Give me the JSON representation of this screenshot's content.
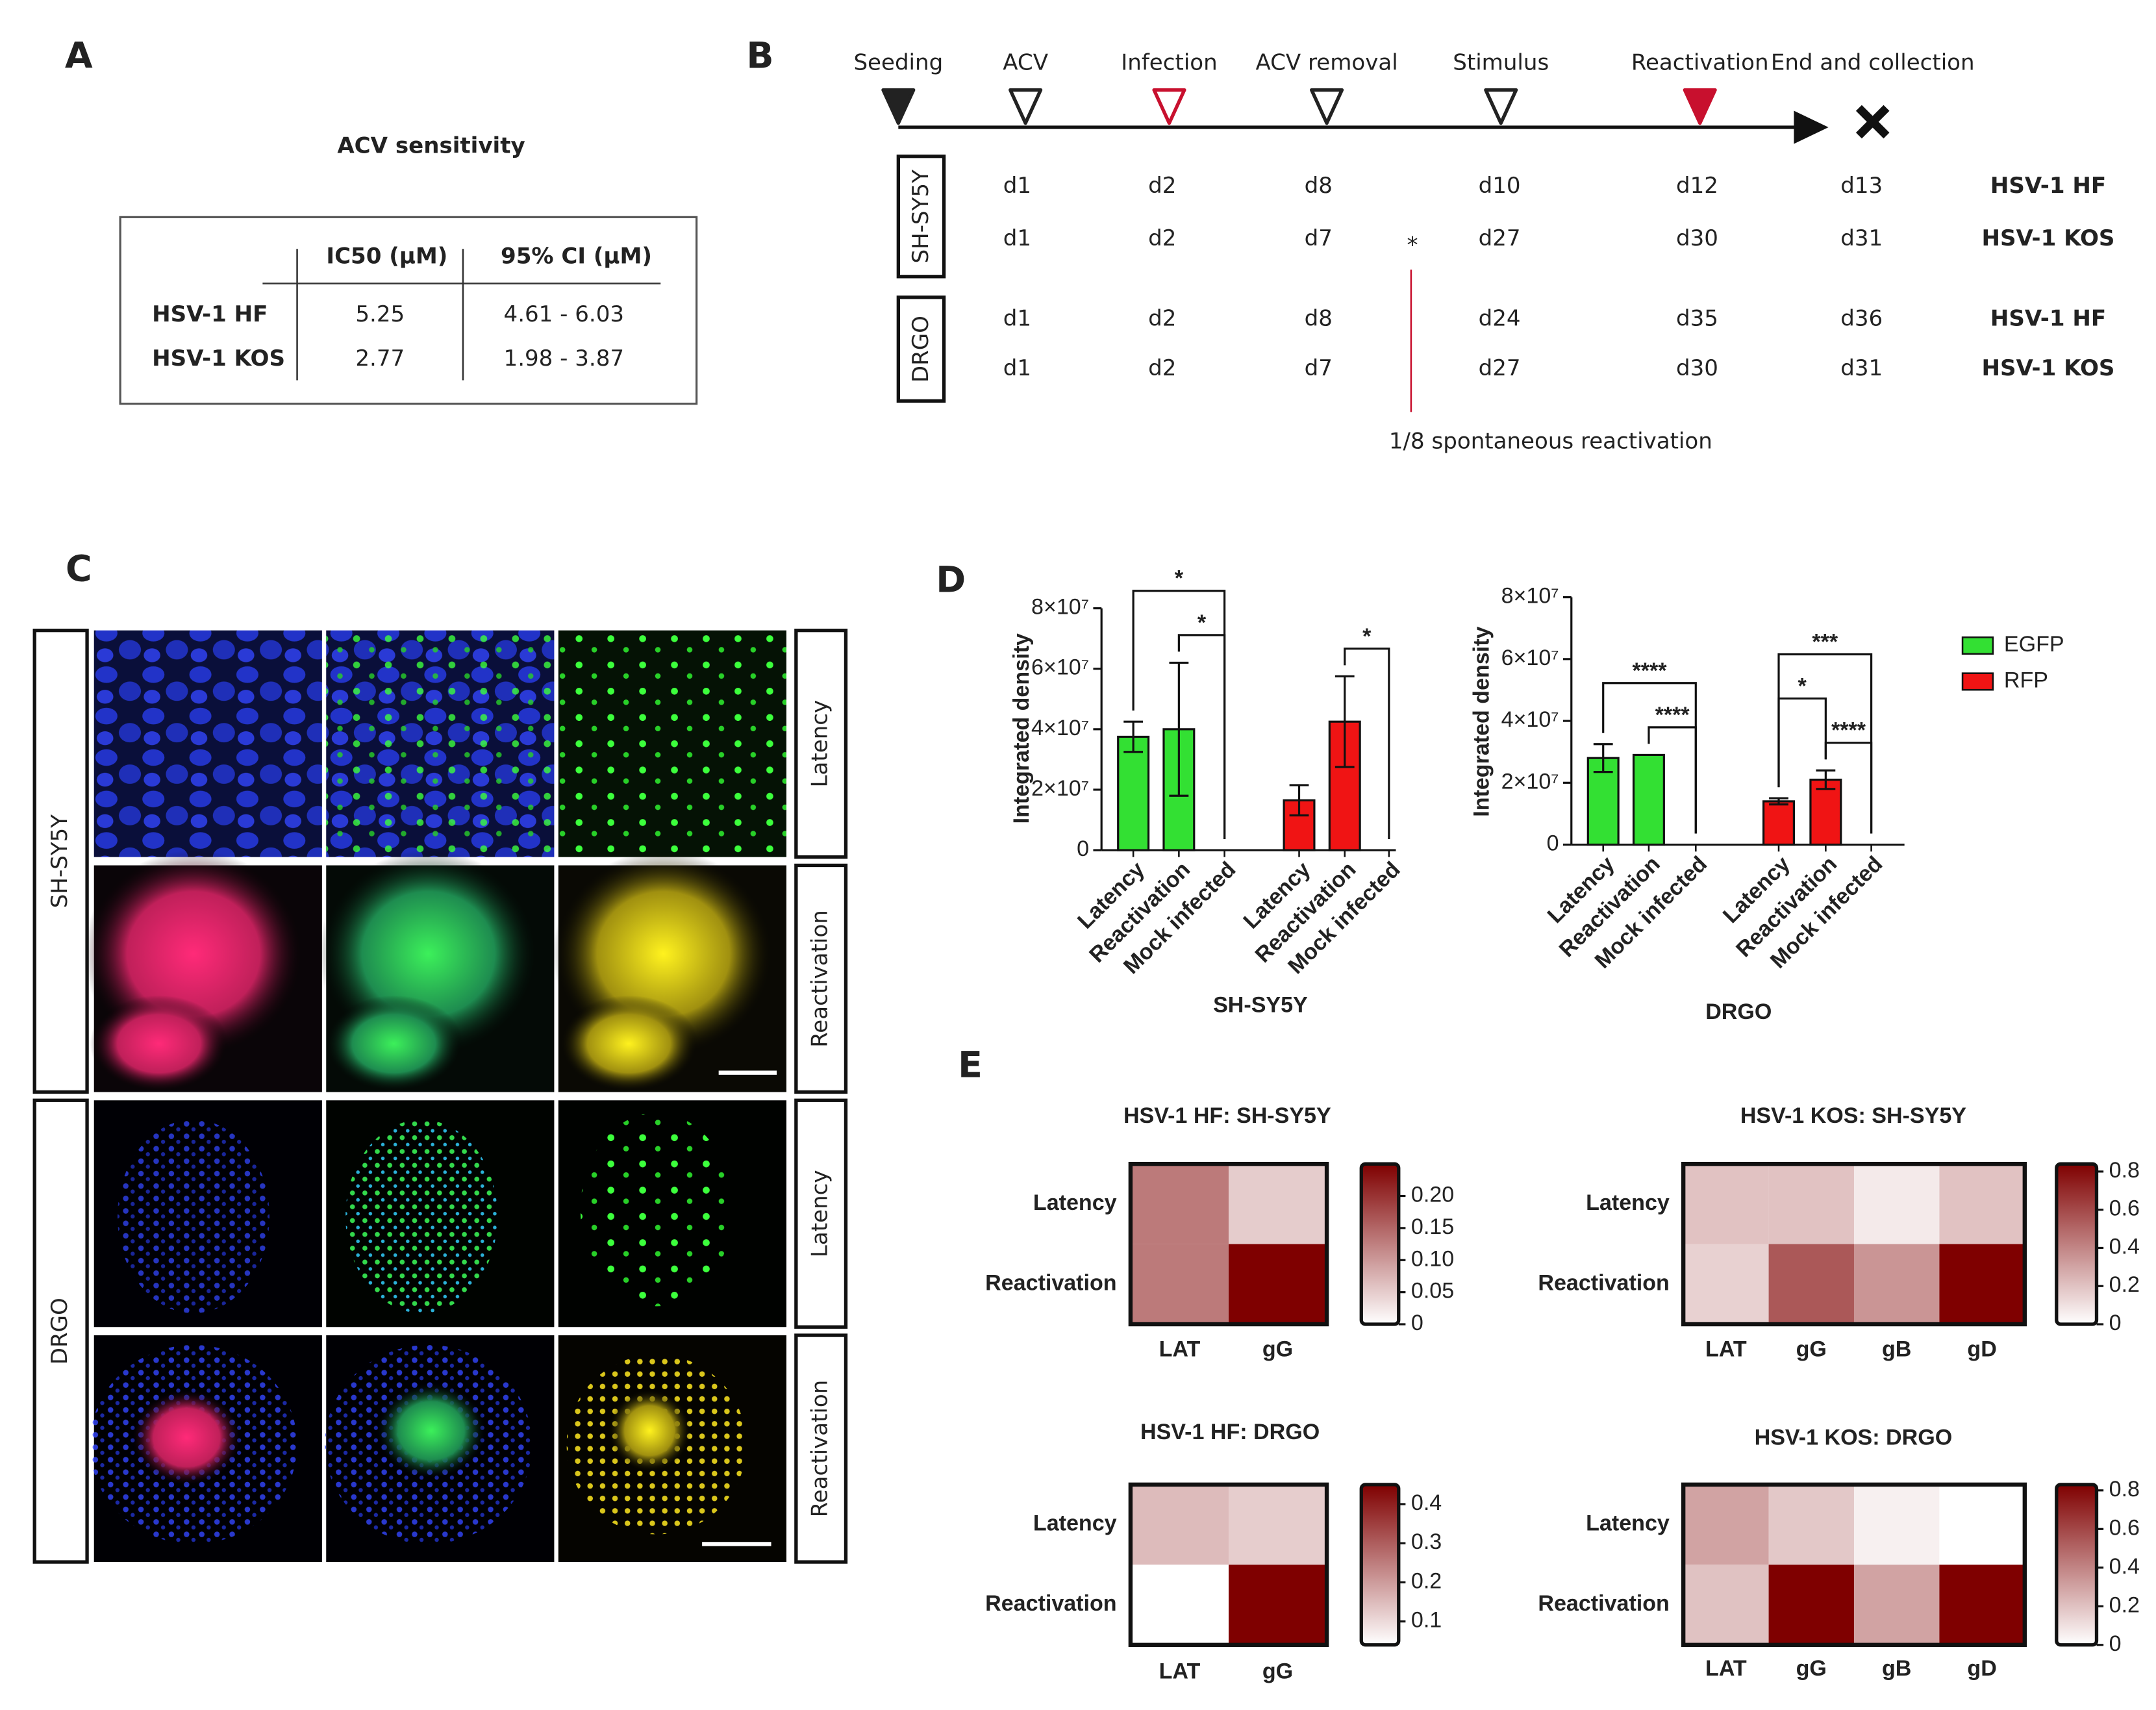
{
  "panel_labels": [
    "A",
    "B",
    "C",
    "D",
    "E"
  ],
  "panel_a": {
    "title": "ACV sensitivity",
    "table": {
      "header": [
        "IC50 (µM)",
        "95% CI (µM)"
      ],
      "rows": [
        {
          "name": "HSV-1 HF",
          "color": "#2e3192",
          "values": [
            5.25,
            "4.61 - 6.03"
          ]
        },
        {
          "name": "HSV-1 KOS",
          "color": "#c8102e",
          "values": [
            2.77,
            "1.98 - 3.87"
          ]
        }
      ]
    }
  },
  "panel_b": {
    "steps": [
      {
        "label": "Seeding",
        "color": "#222222",
        "marker": "filled"
      },
      {
        "label": "ACV",
        "color": "#222222",
        "marker": "open"
      },
      {
        "label": "Infection",
        "color": "#c8102e",
        "marker": "open"
      },
      {
        "label": "ACV removal",
        "color": "#222222",
        "marker": "open"
      },
      {
        "label": "Stimulus",
        "color": "#222222",
        "marker": "open"
      },
      {
        "label": "Reactivation",
        "color": "#c8102e",
        "marker": "filled"
      },
      {
        "label": "End and collection",
        "color": "#111111",
        "marker": "cross"
      }
    ],
    "groups": [
      {
        "cell": "SH-SY5Y",
        "rows": [
          {
            "days": [
              "d1",
              "d2",
              "d8",
              "d10",
              "d12",
              "d13"
            ],
            "strain": "HSV-1 HF",
            "color": "#2e3192"
          },
          {
            "days": [
              "d1",
              "d2",
              "d7",
              "d27",
              "d30",
              "d31"
            ],
            "strain": "HSV-1 KOS",
            "color": "#c8102e"
          }
        ]
      },
      {
        "cell": "DRGO",
        "rows": [
          {
            "days": [
              "d1",
              "d2",
              "d8",
              "d24",
              "d35",
              "d36"
            ],
            "strain": "HSV-1 HF",
            "color": "#2e3192"
          },
          {
            "days": [
              "d1",
              "d2",
              "d7",
              "d27",
              "d30",
              "d31"
            ],
            "strain": "HSV-1 KOS",
            "color": "#c8102e"
          }
        ]
      }
    ],
    "asterisk": "*",
    "note": "1/8 spontaneous reactivation",
    "note_color": "#c8102e"
  },
  "panel_c": {
    "groups": [
      {
        "name": "SH-SY5Y",
        "rows": [
          "Latency",
          "Reactivation"
        ]
      },
      {
        "name": "DRGO",
        "rows": [
          "Latency",
          "Reactivation"
        ]
      }
    ]
  },
  "chart_data": [
    {
      "type": "bar",
      "ylabel": "Integrated density",
      "xlabel": "SH-SY5Y",
      "categories": [
        "Latency",
        "Reactivation",
        "Mock infected",
        "Latency",
        "Reactivation",
        "Mock infected"
      ],
      "series": [
        {
          "name": "EGFP",
          "color": "#33e033",
          "values": [
            37500000,
            40000000,
            0,
            null,
            null,
            null
          ],
          "errors": [
            5000000,
            22000000,
            0,
            null,
            null,
            null
          ]
        },
        {
          "name": "RFP",
          "color": "#f01414",
          "values": [
            null,
            null,
            null,
            16500000,
            42500000,
            0
          ],
          "errors": [
            null,
            null,
            null,
            5000000,
            15000000,
            0
          ]
        }
      ],
      "ylim": [
        0,
        80000000
      ],
      "yticks": [
        0,
        {
          "value": 20000000,
          "label": "2×10⁷"
        },
        {
          "value": 40000000,
          "label": "4×10⁷"
        },
        {
          "value": 60000000,
          "label": "6×10⁷"
        },
        {
          "value": 80000000,
          "label": "8×10⁷"
        }
      ],
      "comparisons": [
        {
          "pair": [
            1,
            2
          ],
          "label": "*"
        },
        {
          "pair": [
            0,
            2
          ],
          "label": "*"
        },
        {
          "pair": [
            4,
            5
          ],
          "label": "*"
        }
      ],
      "legend": "right"
    },
    {
      "type": "bar",
      "ylabel": "Integrated density",
      "xlabel": "DRGO",
      "categories": [
        "Latency",
        "Reactivation",
        "Mock infected",
        "Latency",
        "Reactivation",
        "Mock infected"
      ],
      "series": [
        {
          "color": "#33e033",
          "values": [
            28000000,
            29000000,
            0,
            null,
            null,
            null
          ],
          "errors": [
            4500000,
            0,
            0,
            null,
            null,
            null
          ]
        },
        {
          "color": "#f01414",
          "values": [
            null,
            null,
            null,
            14000000,
            21000000,
            0
          ],
          "errors": [
            null,
            null,
            null,
            1000000,
            3000000,
            0
          ]
        }
      ],
      "ylim": [
        0,
        80000000
      ],
      "yticks": [
        0,
        {
          "value": 20000000,
          "label": "2×10⁷"
        },
        {
          "value": 40000000,
          "label": "4×10⁷"
        },
        {
          "value": 60000000,
          "label": "6×10⁷"
        },
        {
          "value": 80000000,
          "label": "8×10⁷"
        }
      ],
      "comparisons": [
        {
          "pair": [
            1,
            2
          ],
          "label": "****"
        },
        {
          "pair": [
            0,
            2
          ],
          "label": "****"
        },
        {
          "pair": [
            4,
            5
          ],
          "label": "****"
        },
        {
          "pair": [
            3,
            4
          ],
          "label": "*"
        },
        {
          "pair": [
            3,
            5
          ],
          "label": "***"
        }
      ]
    },
    {
      "type": "heatmap",
      "title": "HSV-1 HF: SH-SY5Y",
      "rows": [
        "Latency",
        "Reactivation"
      ],
      "columns": [
        "LAT",
        "gG"
      ],
      "values": [
        [
          0.13,
          0.05
        ],
        [
          0.13,
          0.25
        ]
      ],
      "zlim": [
        0,
        0.25
      ],
      "zticks": [
        0,
        0.05,
        {
          "value": 0.1,
          "label": "0.10"
        },
        0.15,
        {
          "value": 0.2,
          "label": "0.20"
        }
      ],
      "color": "#7f0000"
    },
    {
      "type": "heatmap",
      "title": "HSV-1 KOS: SH-SY5Y",
      "rows": [
        "Latency",
        "Reactivation"
      ],
      "columns": [
        "LAT",
        "gG",
        "gB",
        "gD"
      ],
      "values": [
        [
          0.2,
          0.2,
          0.07,
          0.2
        ],
        [
          0.15,
          0.55,
          0.35,
          0.84
        ]
      ],
      "zlim": [
        0,
        0.84
      ],
      "zticks": [
        0,
        0.2,
        0.4,
        0.6,
        0.8
      ],
      "color": "#7f0000"
    },
    {
      "type": "heatmap",
      "title": "HSV-1 HF: DRGO",
      "rows": [
        "Latency",
        "Reactivation"
      ],
      "columns": [
        "LAT",
        "gG"
      ],
      "values": [
        [
          0.15,
          0.12
        ],
        [
          0.04,
          0.45
        ]
      ],
      "zlim": [
        0.04,
        0.45
      ],
      "zticks": [
        0.1,
        0.2,
        0.3,
        0.4
      ],
      "color": "#7f0000"
    },
    {
      "type": "heatmap",
      "title": "HSV-1 KOS: DRGO",
      "rows": [
        "Latency",
        "Reactivation"
      ],
      "columns": [
        "LAT",
        "gG",
        "gB",
        "gD"
      ],
      "values": [
        [
          0.3,
          0.18,
          0.05,
          0
        ],
        [
          0.2,
          0.83,
          0.3,
          0.83
        ]
      ],
      "zlim": [
        0,
        0.83
      ],
      "zticks": [
        0,
        0.2,
        0.4,
        0.6,
        0.8
      ],
      "color": "#7f0000"
    }
  ]
}
